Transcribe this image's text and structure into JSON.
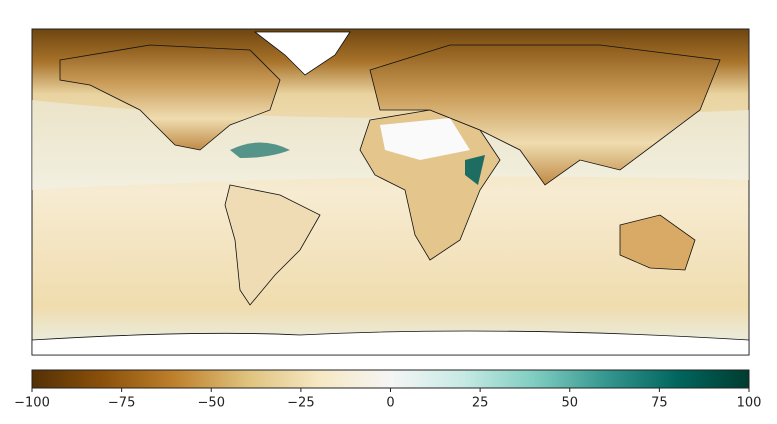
{
  "colorbar": {
    "lim": [
      -100,
      100
    ],
    "ticks": [
      {
        "value": -100,
        "label": "−100"
      },
      {
        "value": -75,
        "label": "−75"
      },
      {
        "value": -50,
        "label": "−50"
      },
      {
        "value": -25,
        "label": "−25"
      },
      0,
      25,
      50,
      75,
      100
    ],
    "colormap": [
      "#543005",
      "#8c510a",
      "#bf812d",
      "#dfc27d",
      "#f6e8c3",
      "#f5f5f5",
      "#c7eae5",
      "#80cdc1",
      "#35978f",
      "#01665e",
      "#003c30"
    ]
  }
}
